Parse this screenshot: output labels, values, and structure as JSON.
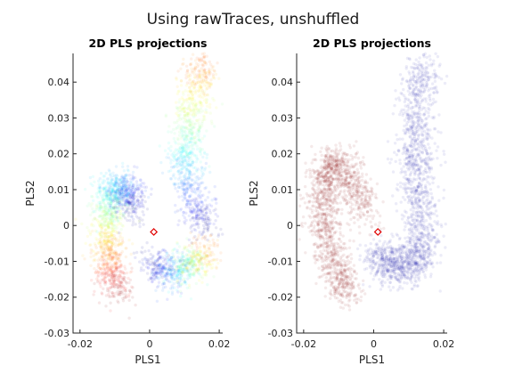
{
  "figure": {
    "suptitle": "Using rawTraces, unshuffled"
  },
  "chart_data": [
    {
      "type": "scatter",
      "title": "2D PLS projections",
      "xlabel": "PLS1",
      "ylabel": "PLS2",
      "xlim": [
        -0.022,
        0.021
      ],
      "ylim": [
        -0.03,
        0.048
      ],
      "xticks": [
        -0.02,
        0,
        0.02
      ],
      "xtick_labels": [
        "-0.02",
        "0",
        "0.02"
      ],
      "yticks": [
        -0.03,
        -0.02,
        -0.01,
        0,
        0.01,
        0.02,
        0.03,
        0.04
      ],
      "ytick_labels": [
        "-0.03",
        "-0.02",
        "-0.01",
        "0",
        "0.01",
        "0.02",
        "0.03",
        "0.04"
      ],
      "coloring": "jet colormap along trajectory (red -> yellow -> cyan -> blue)",
      "clusters": [
        {
          "path": [
            [
              -0.009,
              -0.019
            ],
            [
              -0.011,
              -0.012
            ],
            [
              -0.012,
              -0.004
            ],
            [
              -0.012,
              0.004
            ],
            [
              -0.011,
              0.011
            ],
            [
              -0.006,
              0.01
            ],
            [
              -0.005,
              0.004
            ]
          ],
          "spread": 0.0024,
          "n": 1400,
          "colormap": "jet"
        },
        {
          "path": [
            [
              0.016,
              0.0
            ],
            [
              0.013,
              0.004
            ],
            [
              0.011,
              0.012
            ],
            [
              0.01,
              0.018
            ],
            [
              0.011,
              0.025
            ],
            [
              0.012,
              0.032
            ],
            [
              0.014,
              0.04
            ],
            [
              0.015,
              0.045
            ]
          ],
          "spread": 0.0026,
          "n": 1000,
          "colormap": "jet_reverse"
        },
        {
          "path": [
            [
              0.0,
              -0.01
            ],
            [
              0.004,
              -0.013
            ],
            [
              0.008,
              -0.012
            ],
            [
              0.011,
              -0.011
            ],
            [
              0.014,
              -0.01
            ],
            [
              0.016,
              -0.006
            ]
          ],
          "spread": 0.0025,
          "n": 700,
          "colormap": "jet_reverse"
        }
      ],
      "marker": {
        "x": 0.0012,
        "y": -0.0018,
        "color": "#e00000",
        "shape": "diamond"
      }
    },
    {
      "type": "scatter",
      "title": "2D PLS projections",
      "xlabel": "PLS1",
      "ylabel": "PLS2",
      "xlim": [
        -0.022,
        0.021
      ],
      "ylim": [
        -0.03,
        0.048
      ],
      "xticks": [
        -0.02,
        0,
        0.02
      ],
      "xtick_labels": [
        "-0.02",
        "0",
        "0.02"
      ],
      "yticks": [
        -0.03,
        -0.02,
        -0.01,
        0,
        0.01,
        0.02,
        0.03,
        0.04
      ],
      "ytick_labels": [
        "-0.03",
        "-0.02",
        "-0.01",
        "0",
        "0.01",
        "0.02",
        "0.03",
        "0.04"
      ],
      "coloring": "two classes: dark red and dark blue",
      "clusters": [
        {
          "path": [
            [
              -0.007,
              -0.02
            ],
            [
              -0.01,
              -0.013
            ],
            [
              -0.013,
              -0.005
            ],
            [
              -0.014,
              0.003
            ],
            [
              -0.014,
              0.011
            ],
            [
              -0.013,
              0.016
            ],
            [
              -0.01,
              0.018
            ],
            [
              -0.005,
              0.01
            ],
            [
              -0.002,
              0.003
            ]
          ],
          "spread": 0.0025,
          "n": 1500,
          "color": "#8b1a1a"
        },
        {
          "path": [
            [
              0.015,
              0.045
            ],
            [
              0.013,
              0.036
            ],
            [
              0.012,
              0.026
            ],
            [
              0.012,
              0.016
            ],
            [
              0.013,
              0.006
            ],
            [
              0.014,
              -0.004
            ],
            [
              0.012,
              -0.01
            ],
            [
              0.008,
              -0.012
            ],
            [
              0.004,
              -0.011
            ],
            [
              0.001,
              -0.008
            ]
          ],
          "spread": 0.0028,
          "n": 1800,
          "color": "#2b2bb3"
        }
      ],
      "marker": {
        "x": 0.0012,
        "y": -0.0018,
        "color": "#e00000",
        "shape": "diamond"
      }
    }
  ]
}
